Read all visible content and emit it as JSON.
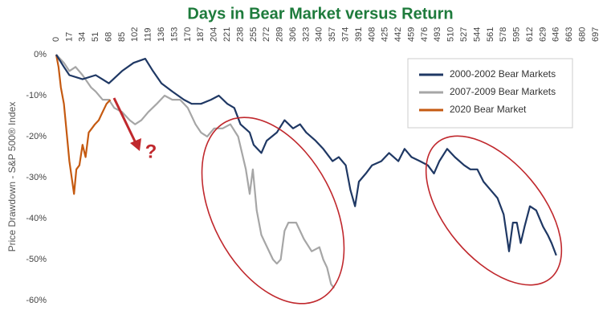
{
  "chart_data": {
    "type": "line",
    "title": "Days in Bear Market versus Return",
    "y_label": "Price Drawdown - S&P 500® Index",
    "annotation": "?",
    "xlim": [
      0,
      697
    ],
    "xticks": [
      0,
      17,
      34,
      51,
      68,
      85,
      102,
      119,
      136,
      153,
      170,
      187,
      204,
      221,
      238,
      255,
      272,
      289,
      306,
      323,
      340,
      357,
      374,
      391,
      408,
      425,
      442,
      459,
      476,
      493,
      510,
      527,
      544,
      561,
      578,
      595,
      612,
      629,
      646,
      663,
      680,
      697
    ],
    "ylim": [
      -60,
      0
    ],
    "yticks": [
      {
        "value": 0,
        "label": "0%"
      },
      {
        "value": -10,
        "label": "-10%"
      },
      {
        "value": -20,
        "label": "-20%"
      },
      {
        "value": -30,
        "label": "-30%"
      },
      {
        "value": -40,
        "label": "-40%"
      },
      {
        "value": -50,
        "label": "-50%"
      },
      {
        "value": -60,
        "label": "-60%"
      }
    ],
    "legend": "top-right",
    "series": [
      {
        "name": "2000-2002 Bear Markets",
        "color": "#1f3864",
        "x": [
          0,
          10,
          17,
          34,
          51,
          68,
          85,
          100,
          115,
          125,
          136,
          150,
          165,
          175,
          187,
          200,
          210,
          221,
          230,
          238,
          250,
          255,
          265,
          272,
          285,
          295,
          306,
          315,
          323,
          335,
          345,
          357,
          365,
          374,
          380,
          386,
          391,
          400,
          408,
          420,
          430,
          442,
          450,
          459,
          470,
          480,
          488,
          495,
          505,
          515,
          527,
          535,
          544,
          552,
          561,
          570,
          578,
          585,
          590,
          595,
          600,
          605,
          612,
          620,
          629,
          635,
          640,
          646
        ],
        "values": [
          0,
          -3,
          -5,
          -6,
          -5,
          -7,
          -4,
          -2,
          -1,
          -4,
          -7,
          -9,
          -11,
          -12,
          -12,
          -11,
          -10,
          -12,
          -13,
          -17,
          -19,
          -22,
          -24,
          -21,
          -19,
          -16,
          -18,
          -17,
          -19,
          -21,
          -23,
          -26,
          -25,
          -27,
          -33,
          -37,
          -31,
          -29,
          -27,
          -26,
          -24,
          -26,
          -23,
          -25,
          -26,
          -27,
          -29,
          -26,
          -23,
          -25,
          -27,
          -28,
          -28,
          -31,
          -33,
          -35,
          -39,
          -48,
          -41,
          -41,
          -46,
          -42,
          -37,
          -38,
          -42,
          -44,
          -46,
          -49
        ]
      },
      {
        "name": "2007-2009 Bear Markets",
        "color": "#a6a6a6",
        "x": [
          0,
          10,
          17,
          25,
          34,
          45,
          51,
          60,
          68,
          75,
          85,
          95,
          102,
          110,
          119,
          130,
          140,
          150,
          160,
          170,
          180,
          187,
          195,
          204,
          215,
          225,
          235,
          240,
          245,
          250,
          254,
          259,
          265,
          270,
          280,
          285,
          290,
          295,
          300,
          310,
          320,
          330,
          340,
          345,
          350,
          355,
          359
        ],
        "values": [
          0,
          -2,
          -4,
          -3,
          -5,
          -8,
          -9,
          -11,
          -11,
          -13,
          -14,
          -16,
          -17,
          -16,
          -14,
          -12,
          -10,
          -11,
          -11,
          -13,
          -17,
          -19,
          -20,
          -18,
          -18,
          -17,
          -20,
          -24,
          -28,
          -34,
          -28,
          -38,
          -44,
          -46,
          -50,
          -51,
          -50,
          -43,
          -41,
          -41,
          -45,
          -48,
          -47,
          -50,
          -52,
          -56,
          -57
        ]
      },
      {
        "name": "2020 Bear Market",
        "color": "#c55a11",
        "x": [
          0,
          3,
          6,
          10,
          14,
          17,
          20,
          23,
          26,
          30,
          34,
          38,
          42,
          46,
          50,
          55,
          60,
          65,
          70
        ],
        "values": [
          0,
          -3,
          -8,
          -12,
          -20,
          -26,
          -30,
          -34,
          -28,
          -27,
          -22,
          -25,
          -19,
          -18,
          -17,
          -16,
          -14,
          -12,
          -11
        ]
      }
    ]
  }
}
